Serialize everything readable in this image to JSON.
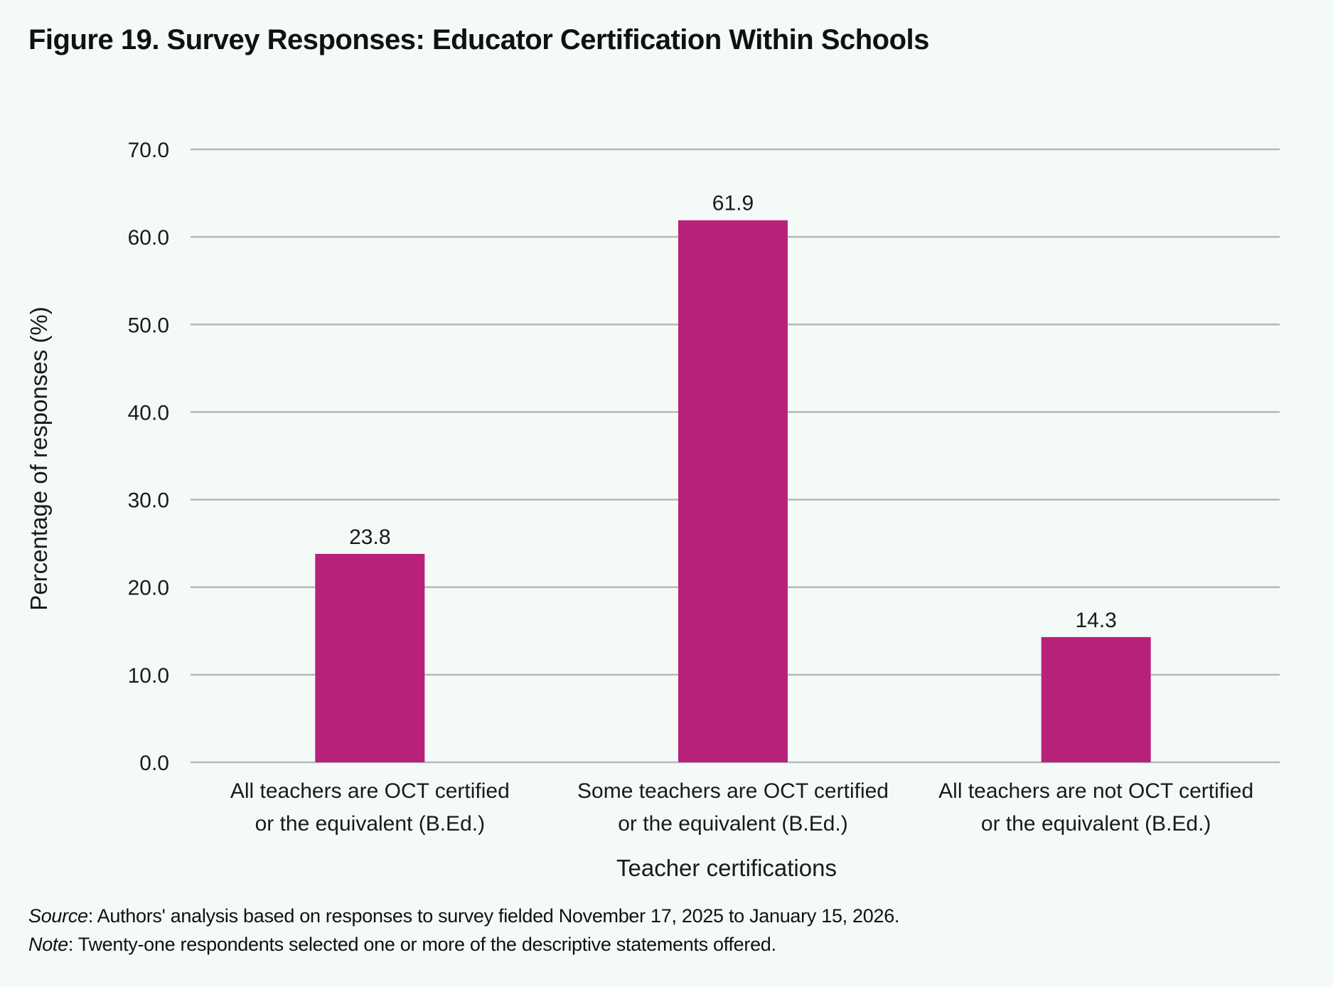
{
  "figure": {
    "title": "Figure 19. Survey Responses: Educator Certification Within Schools"
  },
  "chart_data": {
    "type": "bar",
    "categories": [
      [
        "All teachers are OCT certified",
        "or the equivalent (B.Ed.)"
      ],
      [
        "Some teachers are OCT certified",
        "or the equivalent (B.Ed.)"
      ],
      [
        "All teachers are not OCT certified",
        "or the equivalent (B.Ed.)"
      ]
    ],
    "values": [
      23.8,
      61.9,
      14.3
    ],
    "value_labels": [
      "23.8",
      "61.9",
      "14.3"
    ],
    "xlabel": "Teacher certifications",
    "ylabel": "Percentage of responses (%)",
    "ylim": [
      0,
      70
    ],
    "yticks": [
      0,
      10,
      20,
      30,
      40,
      50,
      60,
      70
    ],
    "ytick_labels": [
      "0.0",
      "10.0",
      "20.0",
      "30.0",
      "40.0",
      "50.0",
      "60.0",
      "70.0"
    ],
    "grid": true,
    "legend": "none",
    "colors": {
      "bar": "#b8217a",
      "grid": "#b5b8bb",
      "background": "#f3faf8"
    }
  },
  "footnotes": {
    "source_label": "Source",
    "source_text": ": Authors' analysis based on responses to survey fielded November 17, 2025 to January 15, 2026.",
    "note_label": "Note",
    "note_text": ": Twenty-one respondents selected one or more of the descriptive statements offered."
  }
}
